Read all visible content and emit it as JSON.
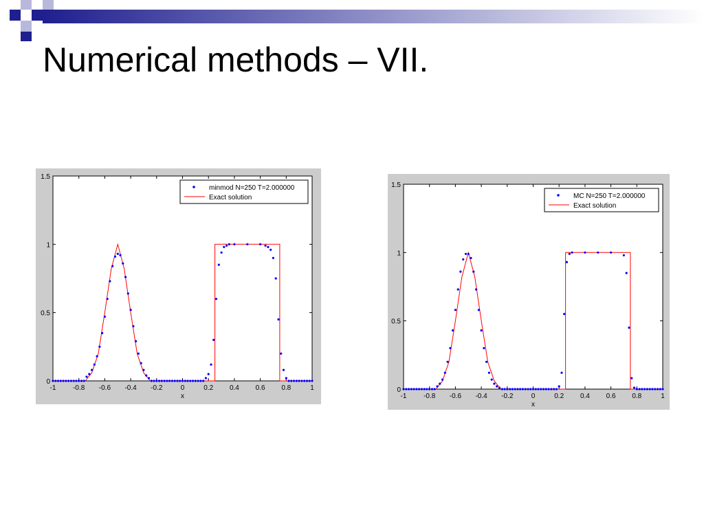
{
  "slide": {
    "title": "Numerical methods – VII.",
    "colors": {
      "accent": "#1f1f8f",
      "light_square": "#b8b8dc",
      "banner_start": "#1f1f8f",
      "banner_end": "#ffffff"
    }
  },
  "chart_data": [
    {
      "type": "scatter",
      "title": "",
      "xlabel": "x",
      "ylabel": "",
      "xlim": [
        -1,
        1
      ],
      "ylim": [
        0,
        1.5
      ],
      "xticks": [
        -1,
        -0.8,
        -0.6,
        -0.4,
        -0.2,
        0,
        0.2,
        0.4,
        0.6,
        0.8,
        1
      ],
      "xtick_labels": [
        "-1",
        "-0.8",
        "-0.6",
        "-0.4",
        "-0.2",
        "0",
        "0.2",
        "0.4",
        "0.6",
        "0.8",
        "1"
      ],
      "yticks": [
        0,
        0.5,
        1,
        1.5
      ],
      "ytick_labels": [
        "0",
        "0.5",
        "1",
        "1.5"
      ],
      "grid": false,
      "legend": {
        "position": "top-right"
      },
      "series": [
        {
          "name": "minmod N=250 T=2.000000",
          "kind": "points",
          "color": "#0000ff",
          "x": [
            -0.74,
            -0.72,
            -0.7,
            -0.68,
            -0.66,
            -0.64,
            -0.62,
            -0.6,
            -0.58,
            -0.56,
            -0.54,
            -0.52,
            -0.5,
            -0.48,
            -0.46,
            -0.44,
            -0.42,
            -0.4,
            -0.38,
            -0.36,
            -0.34,
            -0.32,
            -0.3,
            -0.28,
            -0.26,
            0.18,
            0.2,
            0.22,
            0.24,
            0.26,
            0.28,
            0.3,
            0.32,
            0.34,
            0.36,
            0.4,
            0.5,
            0.6,
            0.64,
            0.66,
            0.68,
            0.7,
            0.72,
            0.74,
            0.76,
            0.78,
            0.8,
            0.82
          ],
          "y": [
            0.03,
            0.05,
            0.08,
            0.12,
            0.18,
            0.25,
            0.35,
            0.47,
            0.6,
            0.73,
            0.84,
            0.91,
            0.93,
            0.92,
            0.86,
            0.76,
            0.64,
            0.52,
            0.4,
            0.29,
            0.2,
            0.13,
            0.08,
            0.04,
            0.02,
            0.02,
            0.05,
            0.12,
            0.3,
            0.6,
            0.85,
            0.94,
            0.98,
            0.99,
            1.0,
            1.0,
            1.0,
            1.0,
            0.99,
            0.98,
            0.96,
            0.9,
            0.75,
            0.45,
            0.2,
            0.08,
            0.02,
            0.0
          ]
        },
        {
          "name": "Exact solution",
          "kind": "line",
          "color": "#ff0000",
          "x": [
            -1,
            -0.75,
            -0.7,
            -0.65,
            -0.6,
            -0.55,
            -0.5,
            -0.45,
            -0.4,
            -0.35,
            -0.3,
            -0.25,
            0.25,
            0.25,
            0.75,
            0.75,
            1
          ],
          "y": [
            0,
            0,
            0.06,
            0.2,
            0.5,
            0.82,
            1.0,
            0.82,
            0.5,
            0.2,
            0.06,
            0,
            0,
            1,
            1,
            0,
            0
          ]
        }
      ]
    },
    {
      "type": "scatter",
      "title": "",
      "xlabel": "x",
      "ylabel": "",
      "xlim": [
        -1,
        1
      ],
      "ylim": [
        0,
        1.5
      ],
      "xticks": [
        -1,
        -0.8,
        -0.6,
        -0.4,
        -0.2,
        0,
        0.2,
        0.4,
        0.6,
        0.8,
        1
      ],
      "xtick_labels": [
        "-1",
        "-0.8",
        "-0.6",
        "-0.4",
        "-0.2",
        "0",
        "0.2",
        "0.4",
        "0.6",
        "0.8",
        "1"
      ],
      "yticks": [
        0,
        0.5,
        1,
        1.5
      ],
      "ytick_labels": [
        "0",
        "0.5",
        "1",
        "1.5"
      ],
      "grid": false,
      "legend": {
        "position": "top-right"
      },
      "series": [
        {
          "name": "MC N=250 T=2.000000",
          "kind": "points",
          "color": "#0000ff",
          "x": [
            -0.74,
            -0.72,
            -0.7,
            -0.68,
            -0.66,
            -0.64,
            -0.62,
            -0.6,
            -0.58,
            -0.56,
            -0.54,
            -0.52,
            -0.5,
            -0.48,
            -0.46,
            -0.44,
            -0.42,
            -0.4,
            -0.38,
            -0.36,
            -0.34,
            -0.32,
            -0.3,
            -0.28,
            -0.26,
            0.2,
            0.22,
            0.24,
            0.26,
            0.28,
            0.3,
            0.4,
            0.5,
            0.6,
            0.7,
            0.72,
            0.74,
            0.76,
            0.78,
            0.8
          ],
          "y": [
            0.02,
            0.04,
            0.07,
            0.12,
            0.2,
            0.3,
            0.43,
            0.58,
            0.73,
            0.86,
            0.95,
            0.99,
            0.99,
            0.96,
            0.86,
            0.73,
            0.58,
            0.43,
            0.3,
            0.2,
            0.12,
            0.07,
            0.04,
            0.02,
            0.01,
            0.02,
            0.12,
            0.55,
            0.93,
            0.99,
            1.0,
            1.0,
            1.0,
            1.0,
            0.98,
            0.85,
            0.45,
            0.08,
            0.01,
            0.0
          ]
        },
        {
          "name": "Exact solution",
          "kind": "line",
          "color": "#ff0000",
          "x": [
            -1,
            -0.75,
            -0.7,
            -0.65,
            -0.6,
            -0.55,
            -0.5,
            -0.45,
            -0.4,
            -0.35,
            -0.3,
            -0.25,
            0.25,
            0.25,
            0.75,
            0.75,
            1
          ],
          "y": [
            0,
            0,
            0.06,
            0.2,
            0.5,
            0.82,
            1.0,
            0.82,
            0.5,
            0.2,
            0.06,
            0,
            0,
            1,
            1,
            0,
            0
          ]
        }
      ]
    }
  ]
}
